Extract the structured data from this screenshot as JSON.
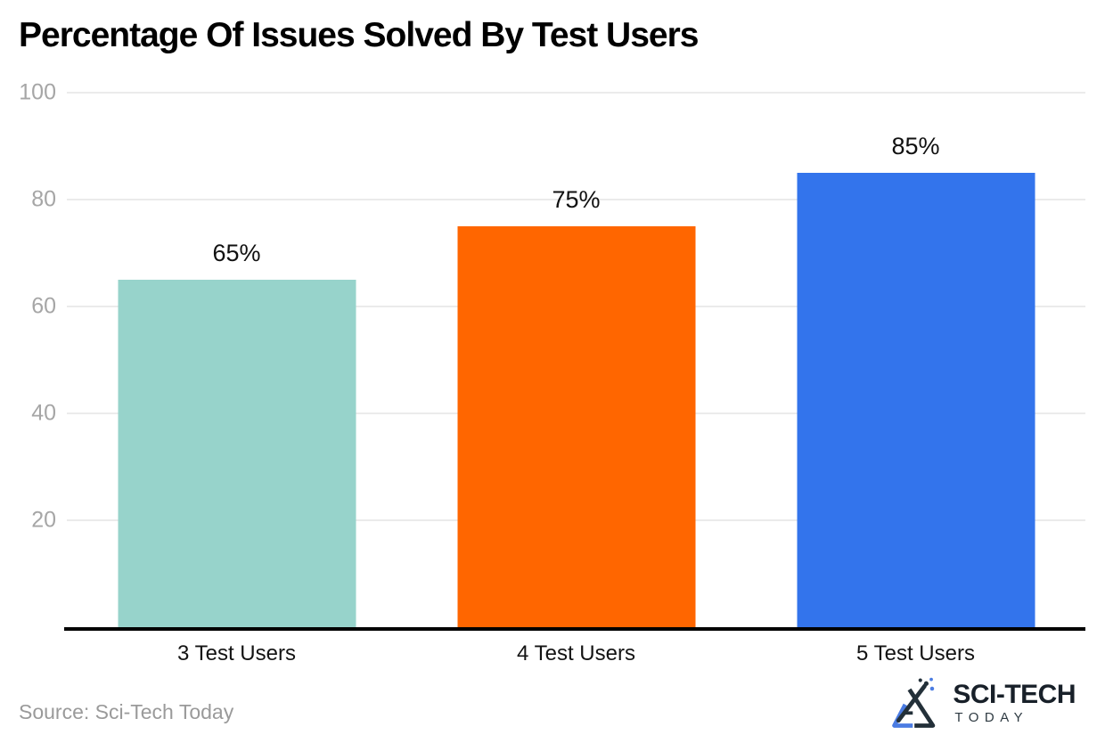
{
  "chart_data": {
    "type": "bar",
    "title": "Percentage Of Issues Solved By Test Users",
    "categories": [
      "3 Test Users",
      "4 Test Users",
      "5 Test Users"
    ],
    "values": [
      65,
      75,
      85
    ],
    "value_labels": [
      "65%",
      "75%",
      "85%"
    ],
    "bar_colors": [
      "#97D3CB",
      "#FF6600",
      "#3374EC"
    ],
    "xlabel": "",
    "ylabel": "",
    "ylim": [
      0,
      100
    ],
    "yticks": [
      20,
      40,
      60,
      80,
      100
    ],
    "grid": true,
    "legend": false
  },
  "footer": {
    "source": "Source: Sci-Tech Today",
    "logo_primary": "SCI-TECH",
    "logo_secondary": "TODAY"
  },
  "colors": {
    "grid_line": "#EBEBEB",
    "axis_line": "#000000",
    "tick_label": "#A6A6A6",
    "value_label": "#111111",
    "category_label": "#131313",
    "source_text": "#9A9A9A",
    "logo_text": "#182029",
    "logo_accent_blue": "#4B7CE2",
    "logo_accent_dark": "#233039"
  }
}
